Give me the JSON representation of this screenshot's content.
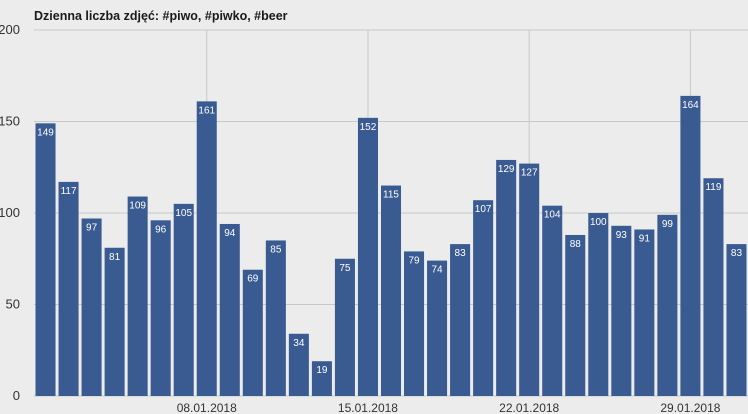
{
  "chart_data": {
    "type": "bar",
    "title": "Dzienna liczba zdjęć: #piwo, #piwko, #beer",
    "xlabel": "",
    "ylabel": "",
    "ylim": [
      0,
      200
    ],
    "yticks": [
      0,
      50,
      100,
      150,
      200
    ],
    "grid": true,
    "legend": "none",
    "first_day": "01.01.2018",
    "xtick_labels": [
      {
        "day_index": 7,
        "label": "08.01.2018"
      },
      {
        "day_index": 14,
        "label": "15.01.2018"
      },
      {
        "day_index": 21,
        "label": "22.01.2018"
      },
      {
        "day_index": 28,
        "label": "29.01.2018"
      }
    ],
    "values": [
      149,
      117,
      97,
      81,
      109,
      96,
      105,
      161,
      94,
      69,
      85,
      34,
      19,
      75,
      152,
      115,
      79,
      74,
      83,
      107,
      129,
      127,
      104,
      88,
      100,
      93,
      91,
      99,
      164,
      119,
      83
    ],
    "colors": {
      "bar": "#3a5a92",
      "grid": "#c8c8c8",
      "background": "#ececec",
      "label": "#ffffff"
    }
  }
}
